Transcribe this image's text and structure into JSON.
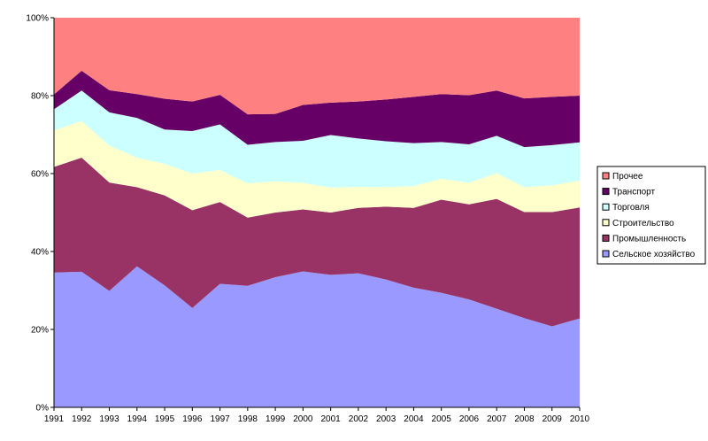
{
  "chart_data": {
    "type": "area",
    "stacked_percent": true,
    "x": [
      "1991",
      "1992",
      "1993",
      "1994",
      "1995",
      "1996",
      "1997",
      "1998",
      "1999",
      "2000",
      "2001",
      "2002",
      "2003",
      "2004",
      "2005",
      "2006",
      "2007",
      "2008",
      "2009",
      "2010"
    ],
    "y_ticks": [
      "0%",
      "20%",
      "40%",
      "60%",
      "80%",
      "100%"
    ],
    "ylim": [
      0,
      100
    ],
    "legend_position": "right",
    "series": [
      {
        "name": "Сельское хозяйство",
        "color": "#9999ff",
        "values": [
          34.6,
          34.8,
          29.9,
          36.2,
          31.3,
          25.5,
          31.7,
          31.2,
          33.4,
          34.9,
          34.0,
          34.4,
          32.8,
          30.7,
          29.4,
          27.7,
          25.3,
          22.9,
          20.8,
          22.8
        ]
      },
      {
        "name": "Промышленность",
        "color": "#993366",
        "values": [
          27.1,
          29.3,
          27.8,
          20.3,
          23.1,
          25.1,
          21.0,
          17.5,
          16.6,
          15.9,
          16.0,
          16.8,
          18.7,
          20.5,
          23.9,
          24.4,
          28.2,
          27.2,
          29.3,
          28.5
        ]
      },
      {
        "name": "Строительство",
        "color": "#ffffcc",
        "values": [
          9.4,
          9.4,
          9.5,
          7.6,
          8.1,
          9.4,
          8.2,
          8.8,
          8.0,
          6.8,
          6.4,
          5.4,
          5.0,
          5.6,
          5.4,
          5.5,
          6.6,
          6.4,
          6.9,
          6.9
        ]
      },
      {
        "name": "Торговля",
        "color": "#ccffff",
        "values": [
          5.4,
          7.8,
          8.5,
          10.2,
          8.8,
          10.9,
          11.7,
          9.9,
          10.1,
          10.8,
          13.5,
          12.4,
          11.8,
          11.0,
          9.4,
          9.9,
          9.6,
          10.3,
          10.3,
          9.8
        ]
      },
      {
        "name": "Транспорт",
        "color": "#660066",
        "values": [
          3.8,
          5.1,
          5.7,
          6.1,
          7.9,
          7.6,
          7.6,
          7.8,
          7.2,
          9.2,
          8.3,
          9.5,
          10.7,
          11.9,
          12.3,
          12.6,
          11.6,
          12.5,
          12.4,
          12.0
        ]
      },
      {
        "name": "Прочее",
        "color": "#ff8080",
        "values": [
          19.7,
          13.6,
          18.6,
          19.6,
          20.8,
          21.5,
          19.8,
          24.8,
          24.7,
          22.4,
          21.8,
          21.5,
          21.0,
          20.3,
          19.6,
          19.9,
          18.7,
          20.7,
          20.3,
          20.0
        ]
      }
    ]
  }
}
